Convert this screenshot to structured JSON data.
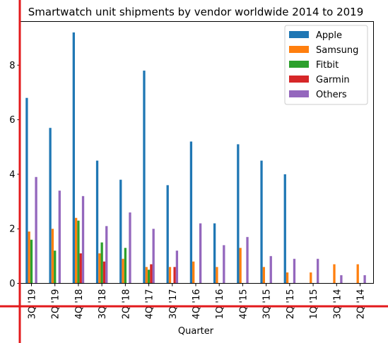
{
  "chart_data": {
    "type": "bar",
    "title": "Smartwatch unit shipments by vendor worldwide 2014 to 2019",
    "xlabel": "Quarter",
    "ylabel": "",
    "ylim": [
      0,
      9.6
    ],
    "yticks": [
      0,
      2,
      4,
      6,
      8
    ],
    "grid": false,
    "legend_position": "top-right",
    "categories": [
      "3Q '19",
      "2Q '19",
      "4Q '18",
      "3Q '18",
      "2Q '18",
      "4Q '17",
      "3Q '17",
      "4Q '16",
      "1Q '16",
      "4Q '15",
      "3Q '15",
      "2Q '15",
      "1Q '15",
      "3Q '14",
      "2Q '14"
    ],
    "series": [
      {
        "name": "Apple",
        "color": "#1f77b4",
        "values": [
          6.8,
          5.7,
          9.2,
          4.5,
          3.8,
          7.8,
          3.6,
          5.2,
          2.2,
          5.1,
          4.5,
          4.0,
          0,
          0,
          0
        ]
      },
      {
        "name": "Samsung",
        "color": "#ff7f0e",
        "values": [
          1.9,
          2.0,
          2.4,
          1.1,
          0.9,
          0.6,
          0.6,
          0.8,
          0.6,
          1.3,
          0.6,
          0.4,
          0.4,
          0.7,
          0.7
        ]
      },
      {
        "name": "Fitbit",
        "color": "#2ca02c",
        "values": [
          1.6,
          1.2,
          2.3,
          1.5,
          1.3,
          0.5,
          0,
          0,
          0,
          0,
          0,
          0,
          0,
          0,
          0
        ]
      },
      {
        "name": "Garmin",
        "color": "#d62728",
        "values": [
          0,
          0,
          1.1,
          0.8,
          0,
          0.7,
          0.6,
          0,
          0,
          0,
          0,
          0,
          0,
          0,
          0
        ]
      },
      {
        "name": "Others",
        "color": "#9467bd",
        "values": [
          3.9,
          3.4,
          3.2,
          2.1,
          2.6,
          2.0,
          1.2,
          2.2,
          1.4,
          1.7,
          1.0,
          0.9,
          0.9,
          0.3,
          0.3
        ]
      }
    ]
  }
}
